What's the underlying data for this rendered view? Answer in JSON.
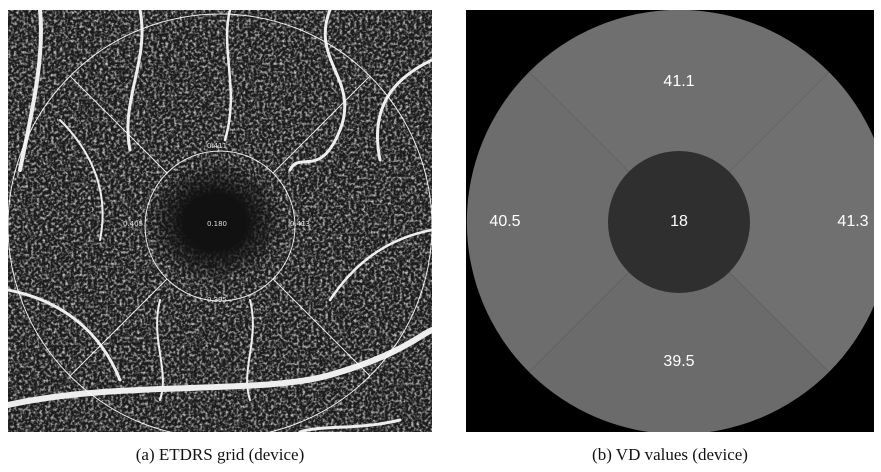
{
  "panels": [
    {
      "caption": "(a) ETDRS grid (device)",
      "labels": {
        "superior": "0.411",
        "nasal": "0.405",
        "center": "0.180",
        "temporal": "0.413",
        "inferior": "0.395"
      }
    },
    {
      "caption": "(b) VD values (device)",
      "labels": {
        "superior": "41.1",
        "nasal": "40.5",
        "center": "18",
        "temporal": "41.3",
        "inferior": "39.5"
      }
    }
  ]
}
